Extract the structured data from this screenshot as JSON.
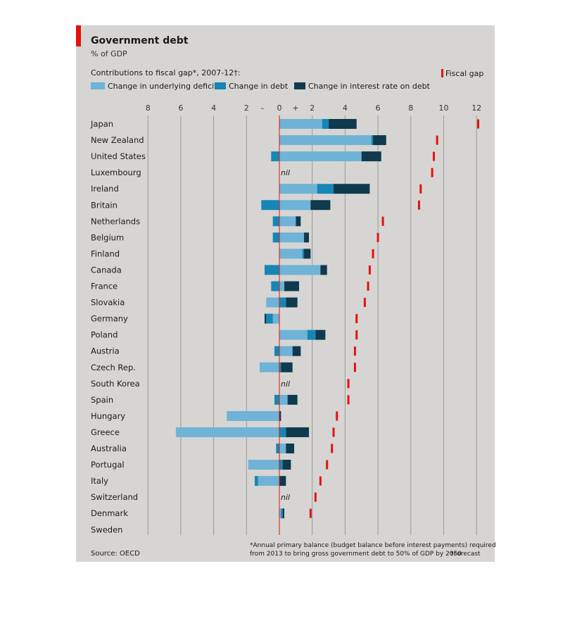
{
  "chart_data": {
    "type": "bar",
    "title": "Government debt",
    "subtitle": "% of GDP",
    "legend_title": "Contributions to fiscal gap*, 2007-12†:",
    "source": "Source: OECD",
    "footnote_line1": "*Annual primary balance (budget balance before interest payments) required",
    "footnote_line2": "from 2013 to bring gross government debt to 50% of GDP by 2050",
    "footnote_forecast": "†Forecast",
    "nil_label": "nil",
    "x_ticks": [
      "8",
      "6",
      "4",
      "2",
      "0",
      "2",
      "4",
      "6",
      "8",
      "10",
      "12"
    ],
    "x_tick_values": [
      -8,
      -6,
      -4,
      -2,
      0,
      2,
      4,
      6,
      8,
      10,
      12
    ],
    "minus_sign": "–",
    "plus_sign": "+",
    "xlim": [
      -12,
      12.5
    ],
    "grid": true,
    "legend": {
      "items": [
        {
          "key": "underlying",
          "label": "Change in underlying deficit",
          "color": "#6fb3d6"
        },
        {
          "key": "debt",
          "label": "Change in debt",
          "color": "#1586b5"
        },
        {
          "key": "interest",
          "label": "Change in interest rate on debt",
          "color": "#0f3a4d"
        },
        {
          "key": "gap",
          "label": "Fiscal gap",
          "color": "#e3120b"
        }
      ]
    },
    "categories": [
      "Japan",
      "New Zealand",
      "United States",
      "Luxembourg",
      "Ireland",
      "Britain",
      "Netherlands",
      "Belgium",
      "Finland",
      "Canada",
      "France",
      "Slovakia",
      "Germany",
      "Poland",
      "Austria",
      "Czech Rep.",
      "South Korea",
      "Spain",
      "Hungary",
      "Greece",
      "Australia",
      "Portugal",
      "Italy",
      "Switzerland",
      "Denmark",
      "Sweden"
    ],
    "series": [
      {
        "name": "Change in underlying deficit",
        "values": [
          2.6,
          5.6,
          5.0,
          0,
          2.3,
          1.9,
          1.0,
          1.5,
          1.4,
          2.5,
          0.3,
          -0.8,
          -0.4,
          1.7,
          0.8,
          -1.2,
          0,
          0.5,
          -3.2,
          -6.3,
          0.4,
          -1.9,
          -1.3,
          0,
          0.1,
          0
        ]
      },
      {
        "name": "Change in debt",
        "values": [
          0.4,
          0.1,
          -0.5,
          0,
          1.0,
          -1.1,
          -0.4,
          -0.4,
          0.1,
          -0.9,
          -0.5,
          0.4,
          -0.4,
          0.5,
          -0.3,
          0.1,
          0,
          -0.3,
          0,
          0.4,
          -0.2,
          0.2,
          -0.2,
          0,
          0.1,
          0
        ]
      },
      {
        "name": "Change in interest rate on debt",
        "values": [
          1.7,
          0.8,
          1.2,
          0,
          2.2,
          1.2,
          0.3,
          0.3,
          0.4,
          0.4,
          0.9,
          0.7,
          -0.1,
          0.6,
          0.5,
          0.7,
          0,
          0.6,
          0.1,
          1.4,
          0.5,
          0.5,
          0.4,
          0,
          0.1,
          0
        ]
      },
      {
        "name": "Fiscal gap",
        "values": [
          12.1,
          9.6,
          9.4,
          9.3,
          8.6,
          8.5,
          6.3,
          6.0,
          5.7,
          5.5,
          5.4,
          5.2,
          4.7,
          4.7,
          4.6,
          4.6,
          4.2,
          4.2,
          3.5,
          3.3,
          3.2,
          2.9,
          2.5,
          2.2,
          1.9,
          0
        ]
      }
    ]
  }
}
